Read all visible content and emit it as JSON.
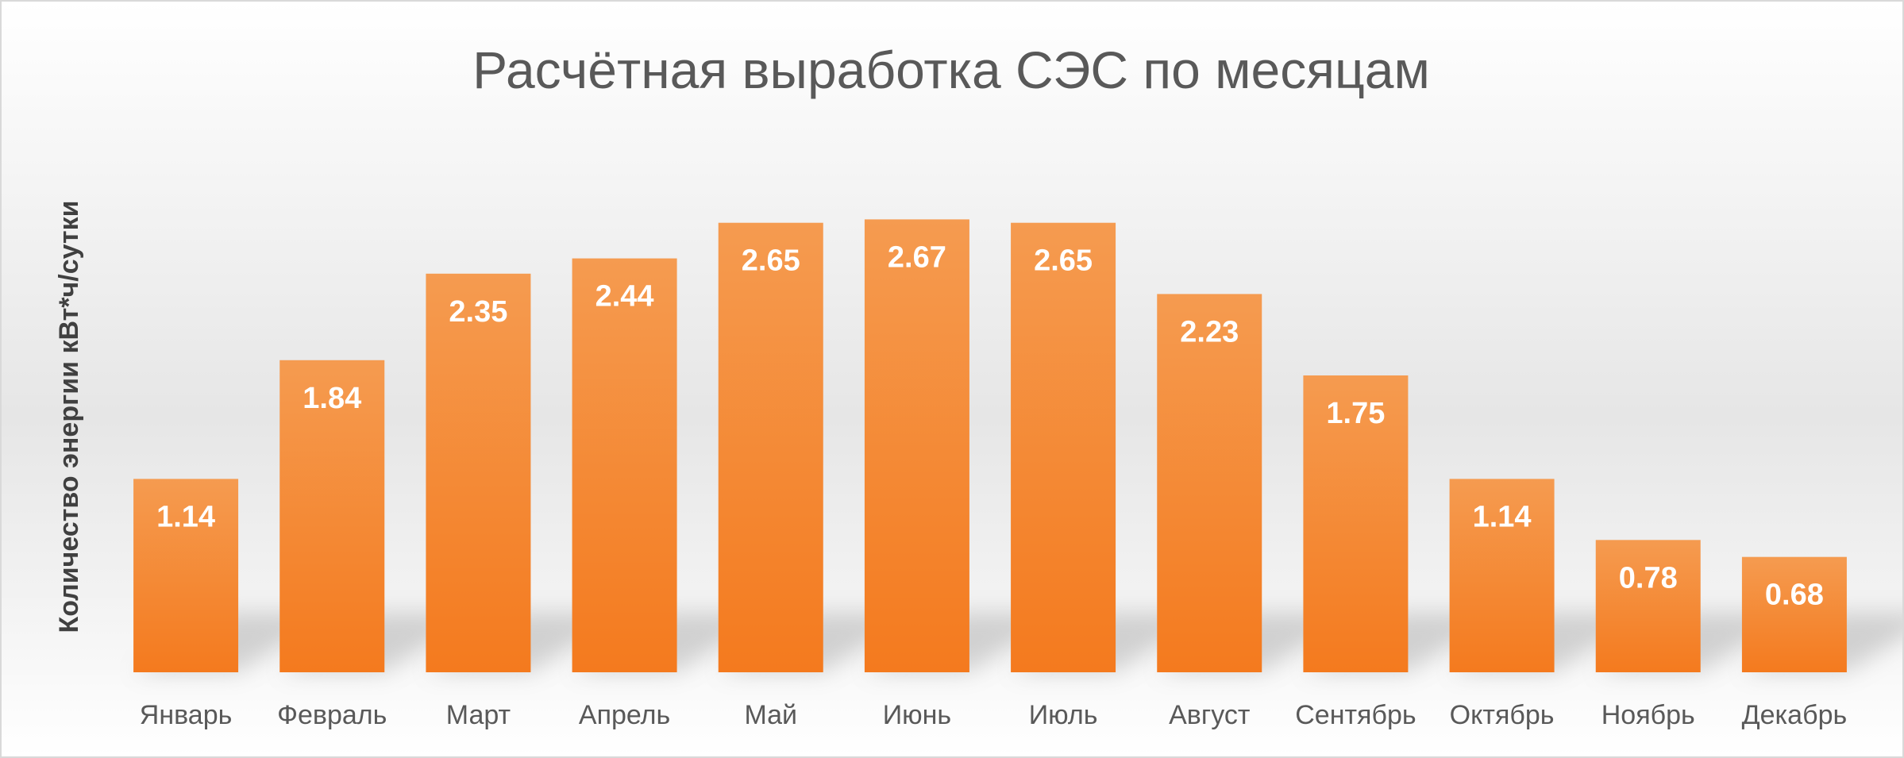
{
  "chart_data": {
    "type": "bar",
    "title": "Расчётная выработка СЭС по месяцам",
    "xlabel": "",
    "ylabel": "Количество энергии кВт*ч/сутки",
    "categories": [
      "Январь",
      "Февраль",
      "Март",
      "Апрель",
      "Май",
      "Июнь",
      "Июль",
      "Август",
      "Сентябрь",
      "Октябрь",
      "Ноябрь",
      "Декабрь"
    ],
    "values": [
      1.14,
      1.84,
      2.35,
      2.44,
      2.65,
      2.67,
      2.65,
      2.23,
      1.75,
      1.14,
      0.78,
      0.68
    ],
    "value_labels": [
      "1.14",
      "1.84",
      "2.35",
      "2.44",
      "2.65",
      "2.67",
      "2.65",
      "2.23",
      "1.75",
      "1.14",
      "0.78",
      "0.68"
    ],
    "ylim": [
      0,
      2.7
    ],
    "grid": false,
    "legend": "none",
    "data_labels": "inside-top",
    "colors": {
      "bar_top": "#f59b50",
      "bar_bottom": "#f47a1e",
      "title": "#595959",
      "axis_text": "#595959",
      "ylabel": "#404040",
      "data_label": "#ffffff"
    }
  }
}
